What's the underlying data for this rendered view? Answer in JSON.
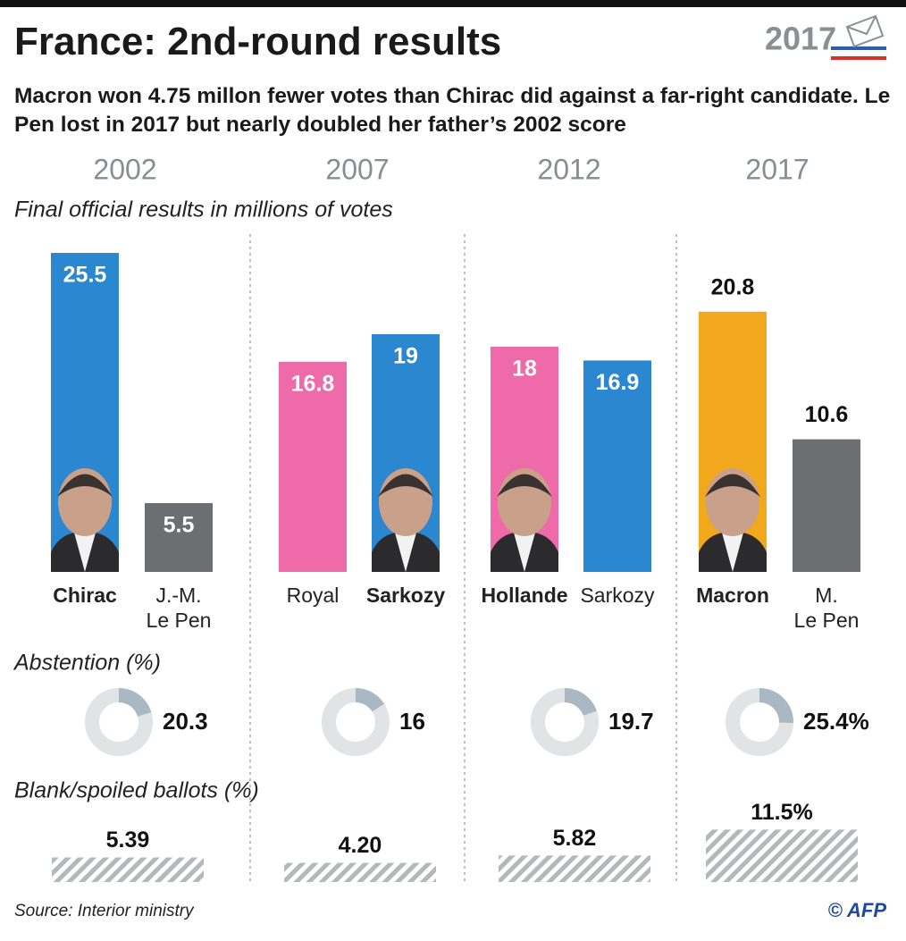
{
  "title": "France: 2nd-round results",
  "subtitle": "Macron won 4.75 millon fewer votes than Chirac did against a far-right candidate. Le Pen lost in 2017 but nearly doubled her father’s 2002 score",
  "logo_text": "2017",
  "source": "Source: Interior ministry",
  "credit": "© AFP",
  "chart_data": [
    {
      "type": "bar",
      "subtitle": "Final official results in millions of votes",
      "panels": [
        {
          "title": "2002",
          "categories": [
            "Chirac",
            "J.-M.\nLe Pen"
          ],
          "values": [
            25.5,
            5.5
          ],
          "colors": [
            "#2a87d0",
            "#6d6e71"
          ],
          "winner": 0,
          "label_position": "inside"
        },
        {
          "title": "2007",
          "categories": [
            "Royal",
            "Sarkozy"
          ],
          "values": [
            16.8,
            19
          ],
          "colors": [
            "#ef6aa8",
            "#2a87d0"
          ],
          "winner": 1,
          "label_position": "inside"
        },
        {
          "title": "2012",
          "categories": [
            "Hollande",
            "Sarkozy"
          ],
          "values": [
            18,
            16.9
          ],
          "colors": [
            "#ef6aa8",
            "#2a87d0"
          ],
          "winner": 0,
          "label_position": "inside"
        },
        {
          "title": "2017",
          "categories": [
            "Macron",
            "M.\nLe Pen"
          ],
          "values": [
            20.8,
            10.6
          ],
          "colors": [
            "#f2a81d",
            "#6d6e71"
          ],
          "winner": 0,
          "label_position": "above"
        }
      ]
    },
    {
      "type": "pie",
      "title": "Abstention (%)",
      "values": [
        20.3,
        16,
        19.7,
        25.4
      ],
      "value_labels": [
        "20.3",
        "16",
        "19.7",
        "25.4%"
      ],
      "color": "#a9b8c2",
      "rest_color": "#e1e3e4"
    },
    {
      "type": "bar",
      "title": "Blank/spoiled ballots (%)",
      "values": [
        5.39,
        4.2,
        5.82,
        11.5
      ],
      "value_labels": [
        "5.39",
        "4.20",
        "5.82",
        "11.5%"
      ],
      "color": "#b5b8ba"
    }
  ]
}
